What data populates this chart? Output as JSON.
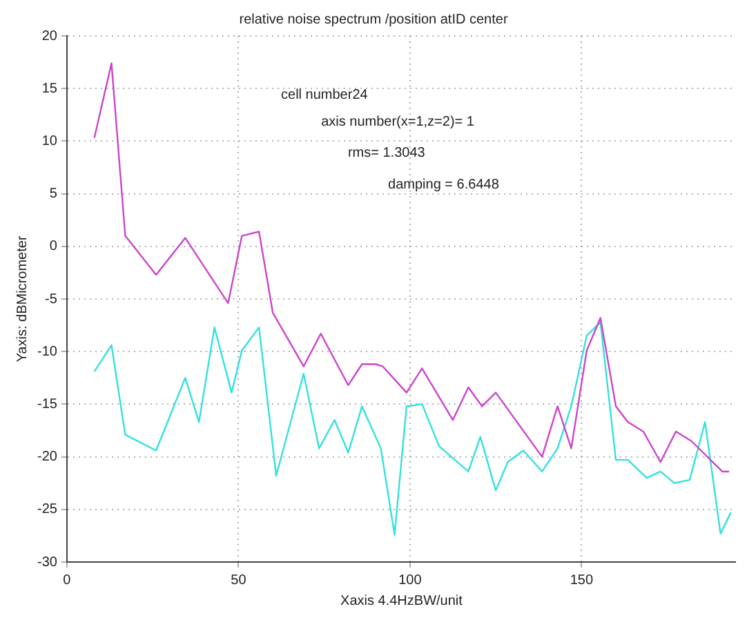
{
  "chart_data": {
    "type": "line",
    "title": "relative noise spectrum /position atID center",
    "xlabel": "Xaxis 4.4HzBW/unit",
    "ylabel": "Yaxis: dBMicrometer",
    "annotations": [
      "cell number24",
      "axis number(x=1,z=2)= 1",
      "rms= 1.3043",
      "damping = 6.6448"
    ],
    "series": [
      {
        "color": "#cc44cc",
        "x": [
          8,
          13,
          17,
          26,
          34.5,
          47,
          51,
          56,
          60,
          69,
          74,
          82,
          86,
          90,
          92,
          99,
          103.5,
          112.5,
          117,
          121,
          125,
          138.5,
          143,
          147,
          151.5,
          155.5,
          160,
          163.5,
          168,
          173,
          177.5,
          182,
          191,
          193
        ],
        "values": [
          10.3,
          17.4,
          1.0,
          -2.7,
          0.8,
          -5.4,
          1.0,
          1.4,
          -6.3,
          -11.4,
          -8.3,
          -13.2,
          -11.2,
          -11.2,
          -11.4,
          -13.9,
          -11.6,
          -16.5,
          -13.4,
          -15.2,
          -13.9,
          -20.0,
          -15.2,
          -19.2,
          -9.9,
          -6.8,
          -15.2,
          -16.7,
          -17.6,
          -20.5,
          -17.6,
          -18.5,
          -21.4,
          -21.4
        ]
      },
      {
        "color": "#33e0e0",
        "x": [
          8,
          13,
          17,
          26,
          34.5,
          38.5,
          43,
          48,
          51,
          56,
          61,
          69,
          73.5,
          78,
          82,
          86,
          91.5,
          95.5,
          99,
          103.5,
          108.5,
          117,
          120.5,
          125,
          128.5,
          133,
          138.5,
          143,
          147,
          151.5,
          155.5,
          160,
          163.5,
          169,
          173,
          177,
          181.5,
          186,
          190.5,
          193.5
        ],
        "values": [
          -11.9,
          -9.4,
          -17.9,
          -19.4,
          -12.5,
          -16.7,
          -7.7,
          -13.9,
          -9.9,
          -7.7,
          -21.8,
          -12.1,
          -19.2,
          -16.5,
          -19.6,
          -15.2,
          -19.2,
          -27.4,
          -15.2,
          -15.0,
          -19.0,
          -21.4,
          -18.1,
          -23.2,
          -20.5,
          -19.4,
          -21.4,
          -19.2,
          -15.2,
          -8.5,
          -7.2,
          -20.3,
          -20.3,
          -22.0,
          -21.4,
          -22.5,
          -22.2,
          -16.7,
          -27.3,
          -25.3
        ]
      }
    ],
    "xlim": [
      0,
      195
    ],
    "xticks": [
      0,
      50,
      100,
      150
    ],
    "ylim": [
      -30,
      20
    ],
    "yticks": [
      -30,
      -25,
      -20,
      -15,
      -10,
      -5,
      0,
      5,
      10,
      15,
      20
    ],
    "grid": true,
    "legend": false,
    "marker": "none",
    "line_style": "solid"
  }
}
